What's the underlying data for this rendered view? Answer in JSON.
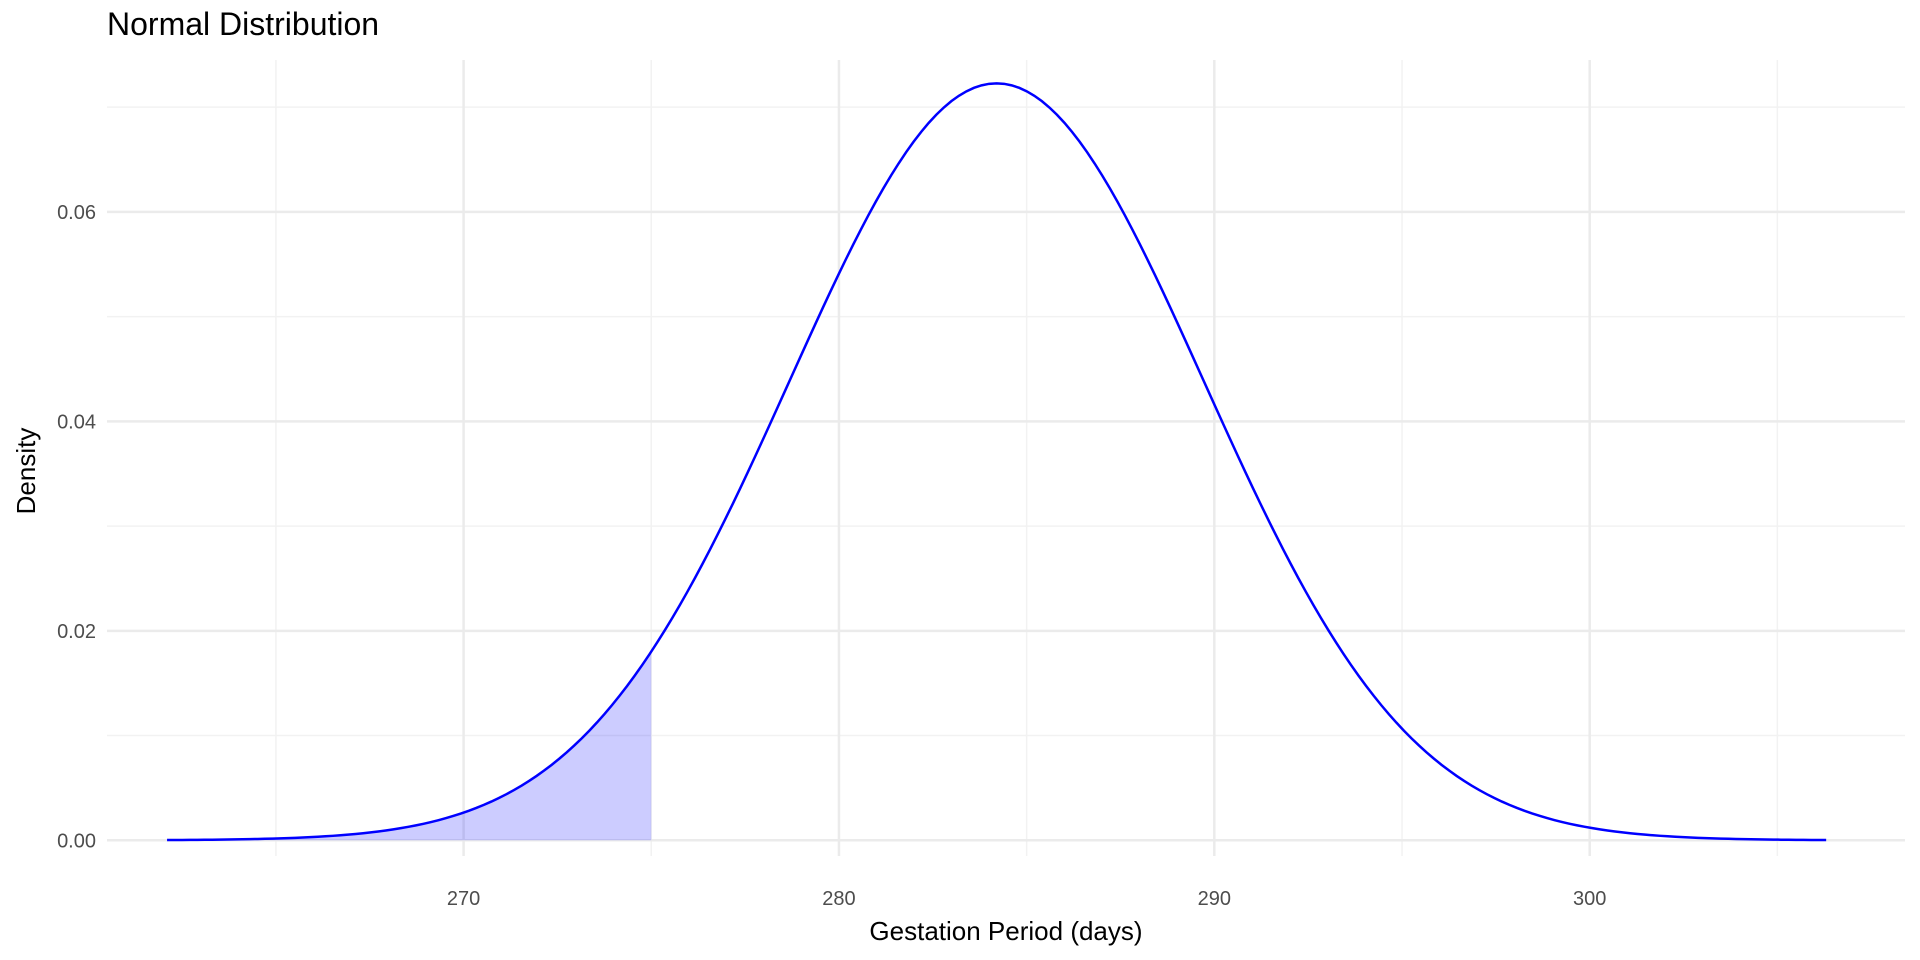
{
  "chart_data": {
    "type": "area",
    "title": "Normal Distribution",
    "xlabel": "Gestation Period (days)",
    "ylabel": "Density",
    "distribution": {
      "mean": 284.2,
      "sd": 5.52
    },
    "x_range": [
      262.1,
      306.3
    ],
    "xlim": [
      260.5,
      308.4
    ],
    "ylim": [
      -0.0015,
      0.0745
    ],
    "x_ticks": [
      270,
      280,
      290,
      300
    ],
    "x_tick_labels": [
      "270",
      "280",
      "290",
      "300"
    ],
    "x_minor_ticks": [
      265,
      275,
      285,
      295,
      305
    ],
    "y_ticks": [
      0,
      0.02,
      0.04,
      0.06
    ],
    "y_tick_labels": [
      "0.00",
      "0.02",
      "0.04",
      "0.06"
    ],
    "y_minor_ticks": [
      0.01,
      0.03,
      0.05,
      0.07
    ],
    "shaded_region": {
      "from": 262.1,
      "to": 275
    },
    "curve_points": [
      {
        "x": 262.1,
        "y": 0.0
      },
      {
        "x": 264,
        "y": 0.0001
      },
      {
        "x": 266,
        "y": 0.0003
      },
      {
        "x": 268,
        "y": 0.001
      },
      {
        "x": 270,
        "y": 0.0025
      },
      {
        "x": 272,
        "y": 0.0063
      },
      {
        "x": 274,
        "y": 0.013
      },
      {
        "x": 275,
        "y": 0.018
      },
      {
        "x": 276,
        "y": 0.024
      },
      {
        "x": 278,
        "y": 0.039
      },
      {
        "x": 280,
        "y": 0.054
      },
      {
        "x": 282,
        "y": 0.0665
      },
      {
        "x": 284.2,
        "y": 0.0723
      },
      {
        "x": 286,
        "y": 0.069
      },
      {
        "x": 288,
        "y": 0.058
      },
      {
        "x": 290,
        "y": 0.0415
      },
      {
        "x": 292,
        "y": 0.0265
      },
      {
        "x": 294,
        "y": 0.015
      },
      {
        "x": 296,
        "y": 0.0075
      },
      {
        "x": 298,
        "y": 0.003
      },
      {
        "x": 300,
        "y": 0.0012
      },
      {
        "x": 302,
        "y": 0.0004
      },
      {
        "x": 304,
        "y": 0.0001
      },
      {
        "x": 306.3,
        "y": 0.0
      }
    ],
    "grid": true,
    "legend": "none",
    "colors": {
      "line": "#0000ff",
      "fill": "#0000ff",
      "fill_opacity": 0.2,
      "grid_major": "#ebebeb",
      "grid_minor": "#f2f2f2"
    }
  }
}
